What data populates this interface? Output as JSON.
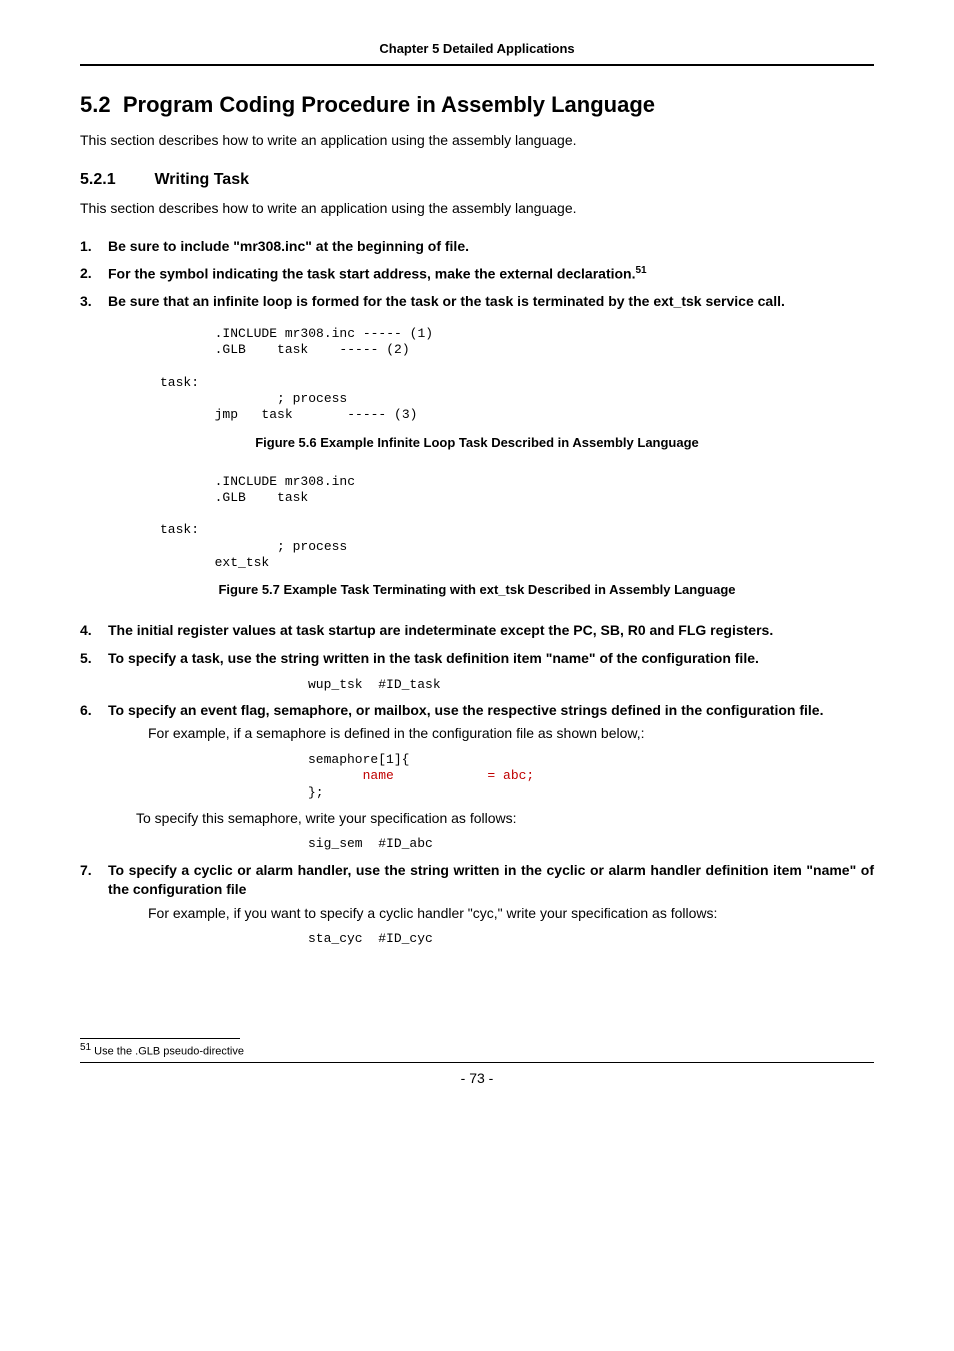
{
  "header": {
    "chapter": "Chapter 5 Detailed Applications"
  },
  "section": {
    "number": "5.2",
    "title": "Program Coding Procedure in Assembly Language",
    "intro": "This section describes how to write an application using the assembly language."
  },
  "subsection": {
    "number": "5.2.1",
    "title": "Writing Task",
    "intro": "This section describes how to write an application using the assembly language."
  },
  "steps": {
    "s1": "Be sure to include \"mr308.inc\" at the beginning of file.",
    "s2_a": "For the symbol indicating the task start address, make the external declaration.",
    "s2_sup": "51",
    "s3": "Be sure that an infinite loop is formed for the task or the task is terminated by the ext_tsk service call.",
    "s4": "The initial register values at task startup are indeterminate except the PC, SB, R0 and FLG registers.",
    "s5": "To specify a task, use the string written in the task definition item \"name\" of the configuration file.",
    "s6": "To specify an event flag, semaphore, or mailbox, use the respective strings defined in the configuration file.",
    "s6_sub": "For example, if a semaphore is defined in the configuration file as shown below,:",
    "s6_sub2": "To specify this semaphore, write your specification as follows:",
    "s7": "To specify a cyclic or alarm handler, use the string written in the cyclic or alarm handler definition item \"name\" of the configuration file",
    "s7_sub": "For example, if you want to specify a cyclic handler \"cyc,\" write your specification as follows:"
  },
  "code": {
    "block1_l1": "       .INCLUDE mr308.inc ----- (1) ",
    "block1_l2": "       .GLB    task    ----- (2) ",
    "block1_l3": "task: ",
    "block1_l4": "               ; process ",
    "block1_l5": "       jmp   task       ----- (3) ",
    "block2_l1": "       .INCLUDE mr308.inc ",
    "block2_l2": "       .GLB    task ",
    "block2_l3": "task: ",
    "block2_l4": "               ; process ",
    "block2_l5": "       ext_tsk ",
    "wup": "wup_tsk  #ID_task ",
    "sem_l1": "semaphore[1]{ ",
    "sem_l2": "       name            = abc; ",
    "sem_l3": "}; ",
    "sig": "sig_sem  #ID_abc ",
    "sta": "sta_cyc  #ID_cyc "
  },
  "figures": {
    "f56": "Figure 5.6 Example Infinite Loop Task Described in Assembly Language",
    "f57": "Figure 5.7 Example Task Terminating with ext_tsk Described in Assembly Language"
  },
  "footnote": {
    "num": "51",
    "text": " Use the .GLB pseudo-directive"
  },
  "page": "- 73 -"
}
